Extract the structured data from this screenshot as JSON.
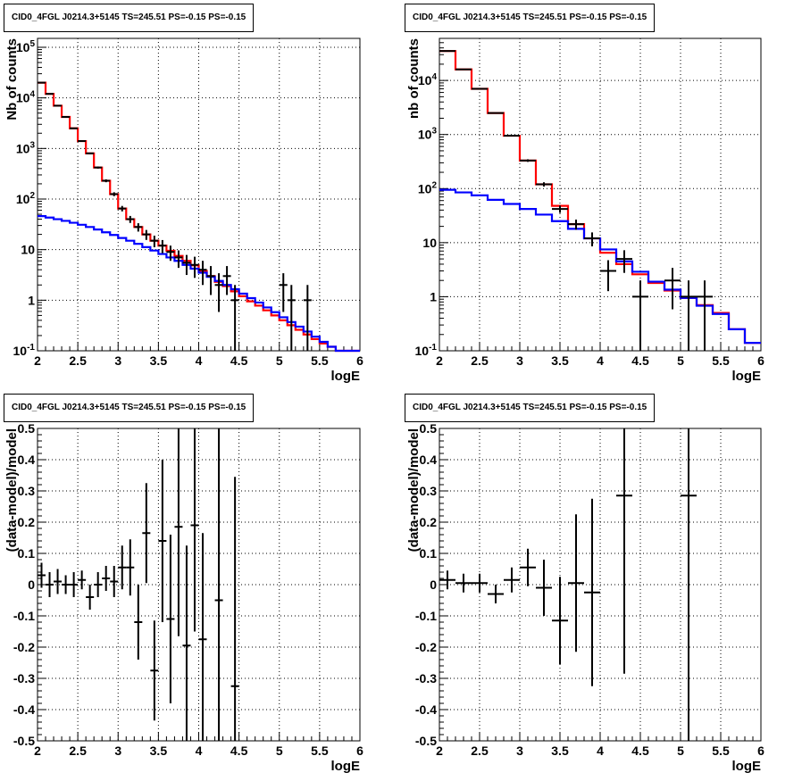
{
  "colors": {
    "model_total": "#ff0000",
    "model_background": "#0000ff",
    "data": "#000000",
    "grid": "#000000"
  },
  "chart_data": [
    {
      "id": "counts_left",
      "type": "line",
      "title": "CID0_4FGL J0214.3+5145 TS=245.51 PS=-0.15 PS=-0.15",
      "xlabel": "logE",
      "ylabel": "Nb of counts",
      "xlim": [
        2,
        6
      ],
      "ylim": [
        0.1,
        150000
      ],
      "yscale": "log",
      "grid": true,
      "xticks": [
        "2",
        "2.5",
        "3",
        "3.5",
        "4",
        "4.5",
        "5",
        "5.5",
        "6"
      ],
      "yticks": [
        "10^-1",
        "1",
        "10",
        "10^2",
        "10^3",
        "10^4",
        "10^5"
      ],
      "series": [
        {
          "style": "step",
          "color": "red",
          "bin_edges": [
            2.0,
            2.1,
            2.2,
            2.3,
            2.4,
            2.5,
            2.6,
            2.7,
            2.8,
            2.9,
            3.0,
            3.1,
            3.2,
            3.3,
            3.4,
            3.5,
            3.6,
            3.7,
            3.8,
            3.9,
            4.0,
            4.1,
            4.2,
            4.3,
            4.4,
            4.5,
            4.6,
            4.7,
            4.8,
            4.9,
            5.0,
            5.1,
            5.2,
            5.3,
            5.4,
            5.5,
            5.6,
            5.7,
            5.8,
            5.9,
            6.0
          ],
          "values": [
            20000,
            12000,
            7000,
            4200,
            2500,
            1400,
            800,
            420,
            230,
            125,
            65,
            40,
            28,
            20,
            15,
            12,
            9.5,
            7.5,
            6.0,
            4.9,
            3.8,
            3.0,
            2.3,
            1.9,
            1.5,
            1.2,
            0.95,
            0.78,
            0.63,
            0.5,
            0.4,
            0.32,
            0.26,
            0.21,
            0.17,
            0.14,
            0.12,
            0.1,
            0.1,
            0.1
          ]
        },
        {
          "style": "step",
          "color": "blue",
          "bin_edges": [
            2.0,
            2.1,
            2.2,
            2.3,
            2.4,
            2.5,
            2.6,
            2.7,
            2.8,
            2.9,
            3.0,
            3.1,
            3.2,
            3.3,
            3.4,
            3.5,
            3.6,
            3.7,
            3.8,
            3.9,
            4.0,
            4.1,
            4.2,
            4.3,
            4.4,
            4.5,
            4.6,
            4.7,
            4.8,
            4.9,
            5.0,
            5.1,
            5.2,
            5.3,
            5.4,
            5.5,
            5.6,
            5.7,
            5.8,
            5.9,
            6.0
          ],
          "values": [
            46,
            43,
            40,
            37,
            34,
            31,
            28,
            25,
            22,
            19.5,
            17,
            15,
            13,
            11.2,
            9.6,
            8.2,
            7.0,
            6.0,
            5.0,
            4.2,
            3.5,
            2.9,
            2.4,
            2.0,
            1.65,
            1.35,
            1.1,
            0.9,
            0.72,
            0.58,
            0.46,
            0.37,
            0.3,
            0.24,
            0.19,
            0.15,
            0.12,
            0.1,
            0.1,
            0.1
          ]
        },
        {
          "style": "errorbar",
          "color": "black",
          "xerr": 0.05,
          "points": [
            [
              2.05,
              20000
            ],
            [
              2.15,
              12000
            ],
            [
              2.25,
              7000
            ],
            [
              2.35,
              4200
            ],
            [
              2.45,
              2500
            ],
            [
              2.55,
              1400
            ],
            [
              2.65,
              800
            ],
            [
              2.75,
              420
            ],
            [
              2.85,
              230
            ],
            [
              2.95,
              125
            ],
            [
              3.05,
              65
            ],
            [
              3.15,
              40
            ],
            [
              3.25,
              28
            ],
            [
              3.35,
              20
            ],
            [
              3.45,
              15
            ],
            [
              3.55,
              12
            ],
            [
              3.65,
              9
            ],
            [
              3.75,
              7
            ],
            [
              3.85,
              5.5
            ],
            [
              3.95,
              5
            ],
            [
              4.05,
              4
            ],
            [
              4.15,
              3
            ],
            [
              4.25,
              2
            ],
            [
              4.35,
              3
            ],
            [
              4.45,
              1
            ],
            [
              5.05,
              2
            ],
            [
              5.15,
              1
            ],
            [
              5.35,
              1
            ]
          ]
        }
      ]
    },
    {
      "id": "counts_right",
      "type": "line",
      "title": "CID0_4FGL J0214.3+5145 TS=245.51 PS=-0.15 PS=-0.15",
      "xlabel": "logE",
      "ylabel": "nb of counts",
      "xlim": [
        2,
        6
      ],
      "ylim": [
        0.1,
        60000
      ],
      "yscale": "log",
      "grid": true,
      "xticks": [
        "2",
        "2.5",
        "3",
        "3.5",
        "4",
        "4.5",
        "5",
        "5.5",
        "6"
      ],
      "yticks": [
        "10^-1",
        "1",
        "10",
        "10^2",
        "10^3",
        "10^4"
      ],
      "series": [
        {
          "style": "step",
          "color": "red",
          "bin_edges": [
            2.0,
            2.2,
            2.4,
            2.6,
            2.8,
            3.0,
            3.2,
            3.4,
            3.6,
            3.8,
            4.0,
            4.2,
            4.4,
            4.6,
            4.8,
            5.0,
            5.2,
            5.4,
            5.6,
            5.8,
            6.0
          ],
          "values": [
            35000,
            16000,
            7000,
            2500,
            950,
            330,
            120,
            48,
            22,
            12,
            6.5,
            4.0,
            2.6,
            1.8,
            1.3,
            0.95,
            0.7,
            0.5,
            0.25,
            0.14
          ]
        },
        {
          "style": "step",
          "color": "blue",
          "bin_edges": [
            2.0,
            2.2,
            2.4,
            2.6,
            2.8,
            3.0,
            3.2,
            3.4,
            3.6,
            3.8,
            4.0,
            4.2,
            4.4,
            4.6,
            4.8,
            5.0,
            5.2,
            5.4,
            5.6,
            5.8,
            6.0
          ],
          "values": [
            95,
            85,
            75,
            62,
            52,
            42,
            33,
            25,
            18,
            12,
            7.5,
            4.5,
            2.9,
            1.9,
            1.35,
            0.95,
            0.68,
            0.48,
            0.25,
            0.14
          ]
        },
        {
          "style": "errorbar",
          "color": "black",
          "xerr": 0.1,
          "points": [
            [
              2.1,
              35000
            ],
            [
              2.3,
              16000
            ],
            [
              2.5,
              7000
            ],
            [
              2.7,
              2500
            ],
            [
              2.9,
              950
            ],
            [
              3.1,
              330
            ],
            [
              3.3,
              120
            ],
            [
              3.5,
              42
            ],
            [
              3.7,
              22
            ],
            [
              3.9,
              12
            ],
            [
              4.1,
              3
            ],
            [
              4.3,
              5
            ],
            [
              4.5,
              1
            ],
            [
              4.9,
              2
            ],
            [
              5.1,
              1
            ],
            [
              5.3,
              1
            ]
          ]
        }
      ]
    },
    {
      "id": "residual_left",
      "type": "scatter",
      "title": "CID0_4FGL J0214.3+5145 TS=245.51 PS=-0.15 PS=-0.15",
      "xlabel": "logE",
      "ylabel": "(data-model)/model",
      "xlim": [
        2,
        6
      ],
      "ylim": [
        -0.5,
        0.5
      ],
      "grid": true,
      "xticks": [
        "2",
        "2.5",
        "3",
        "3.5",
        "4",
        "4.5",
        "5",
        "5.5",
        "6"
      ],
      "yticks": [
        "-0.5",
        "-0.4",
        "-0.3",
        "-0.2",
        "-0.1",
        "0",
        "0.1",
        "0.2",
        "0.3",
        "0.4",
        "0.5"
      ],
      "series": [
        {
          "style": "errorbar",
          "color": "black",
          "xerr": 0.05,
          "points": [
            [
              2.05,
              0.03,
              0.04
            ],
            [
              2.15,
              0.0,
              0.04
            ],
            [
              2.25,
              0.01,
              0.04
            ],
            [
              2.35,
              0.0,
              0.03
            ],
            [
              2.45,
              0.0,
              0.04
            ],
            [
              2.55,
              0.015,
              0.03
            ],
            [
              2.65,
              -0.04,
              0.04
            ],
            [
              2.75,
              0.0,
              0.04
            ],
            [
              2.85,
              0.02,
              0.04
            ],
            [
              2.95,
              0.01,
              0.05
            ],
            [
              3.05,
              0.055,
              0.07
            ],
            [
              3.15,
              0.055,
              0.09
            ],
            [
              3.25,
              -0.12,
              0.12
            ],
            [
              3.35,
              0.165,
              0.16
            ],
            [
              3.45,
              -0.275,
              0.16
            ],
            [
              3.55,
              0.14,
              0.26
            ],
            [
              3.65,
              -0.11,
              0.27
            ],
            [
              3.75,
              0.185,
              0.35
            ],
            [
              3.85,
              -0.195,
              0.32
            ],
            [
              3.95,
              0.19,
              0.34
            ],
            [
              4.05,
              -0.175,
              0.34
            ],
            [
              4.25,
              -0.05,
              0.55
            ],
            [
              4.45,
              -0.325,
              0.67
            ]
          ]
        }
      ]
    },
    {
      "id": "residual_right",
      "type": "scatter",
      "title": "CID0_4FGL J0214.3+5145 TS=245.51 PS=-0.15 PS=-0.15",
      "xlabel": "logE",
      "ylabel": "(data-model)/model",
      "xlim": [
        2,
        6
      ],
      "ylim": [
        -0.5,
        0.5
      ],
      "grid": true,
      "xticks": [
        "2",
        "2.5",
        "3",
        "3.5",
        "4",
        "4.5",
        "5",
        "5.5",
        "6"
      ],
      "yticks": [
        "-0.5",
        "-0.4",
        "-0.3",
        "-0.2",
        "-0.1",
        "0",
        "0.1",
        "0.2",
        "0.3",
        "0.4",
        "0.5"
      ],
      "series": [
        {
          "style": "errorbar",
          "color": "black",
          "xerr": 0.1,
          "points": [
            [
              2.1,
              0.015,
              0.03
            ],
            [
              2.3,
              0.005,
              0.03
            ],
            [
              2.5,
              0.005,
              0.03
            ],
            [
              2.7,
              -0.03,
              0.03
            ],
            [
              2.9,
              0.015,
              0.04
            ],
            [
              3.1,
              0.055,
              0.06
            ],
            [
              3.3,
              -0.01,
              0.09
            ],
            [
              3.5,
              -0.115,
              0.14
            ],
            [
              3.7,
              0.005,
              0.22
            ],
            [
              3.9,
              -0.025,
              0.3
            ],
            [
              4.3,
              0.285,
              0.57
            ],
            [
              5.1,
              0.285,
              0.9
            ]
          ]
        }
      ]
    }
  ]
}
